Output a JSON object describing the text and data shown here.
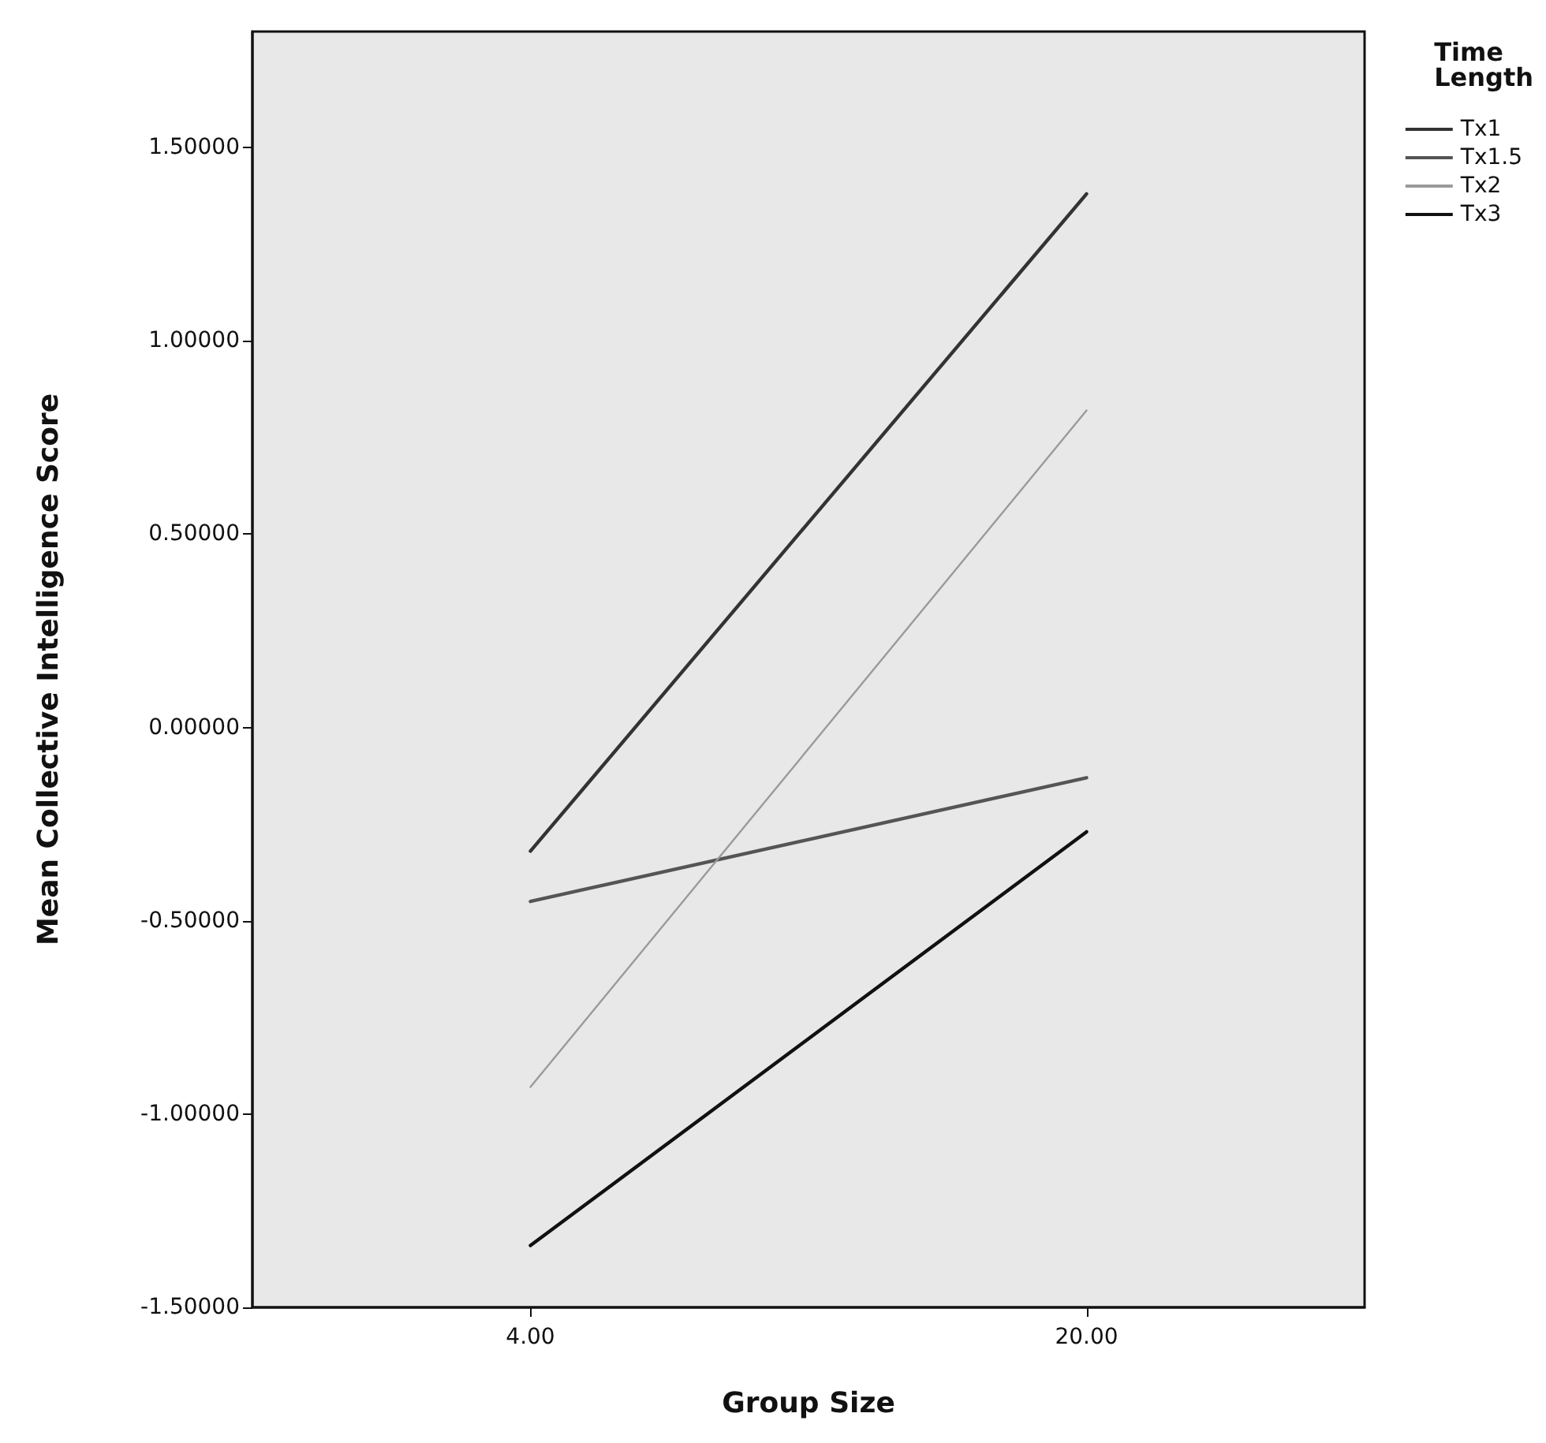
{
  "chart_data": {
    "type": "line",
    "xlabel": "Group Size",
    "ylabel": "Mean Collective Intelligence Score",
    "legend_title": "Time\nLength",
    "categories": [
      "4.00",
      "20.00"
    ],
    "series": [
      {
        "name": "Tx1",
        "color": "#333333",
        "values": [
          -0.32,
          1.38
        ]
      },
      {
        "name": "Tx1.5",
        "color": "#555555",
        "values": [
          -0.45,
          -0.13
        ]
      },
      {
        "name": "Tx2",
        "color": "#9a9a9a",
        "values": [
          -0.93,
          0.82
        ]
      },
      {
        "name": "Tx3",
        "color": "#111111",
        "values": [
          -1.34,
          -0.27
        ]
      }
    ],
    "ylim": [
      -1.5,
      1.8
    ],
    "yticks": [
      {
        "value": -1.5,
        "label": "-1.50000"
      },
      {
        "value": -1,
        "label": "-1.00000"
      },
      {
        "value": -0.5,
        "label": "-0.50000"
      },
      {
        "value": 0,
        "label": "0.00000"
      },
      {
        "value": 0.5,
        "label": "0.50000"
      },
      {
        "value": 1,
        "label": "1.00000"
      },
      {
        "value": 1.5,
        "label": "1.50000"
      }
    ],
    "grid": false,
    "legend": "top right",
    "marker": "none",
    "line_style": "solid"
  }
}
